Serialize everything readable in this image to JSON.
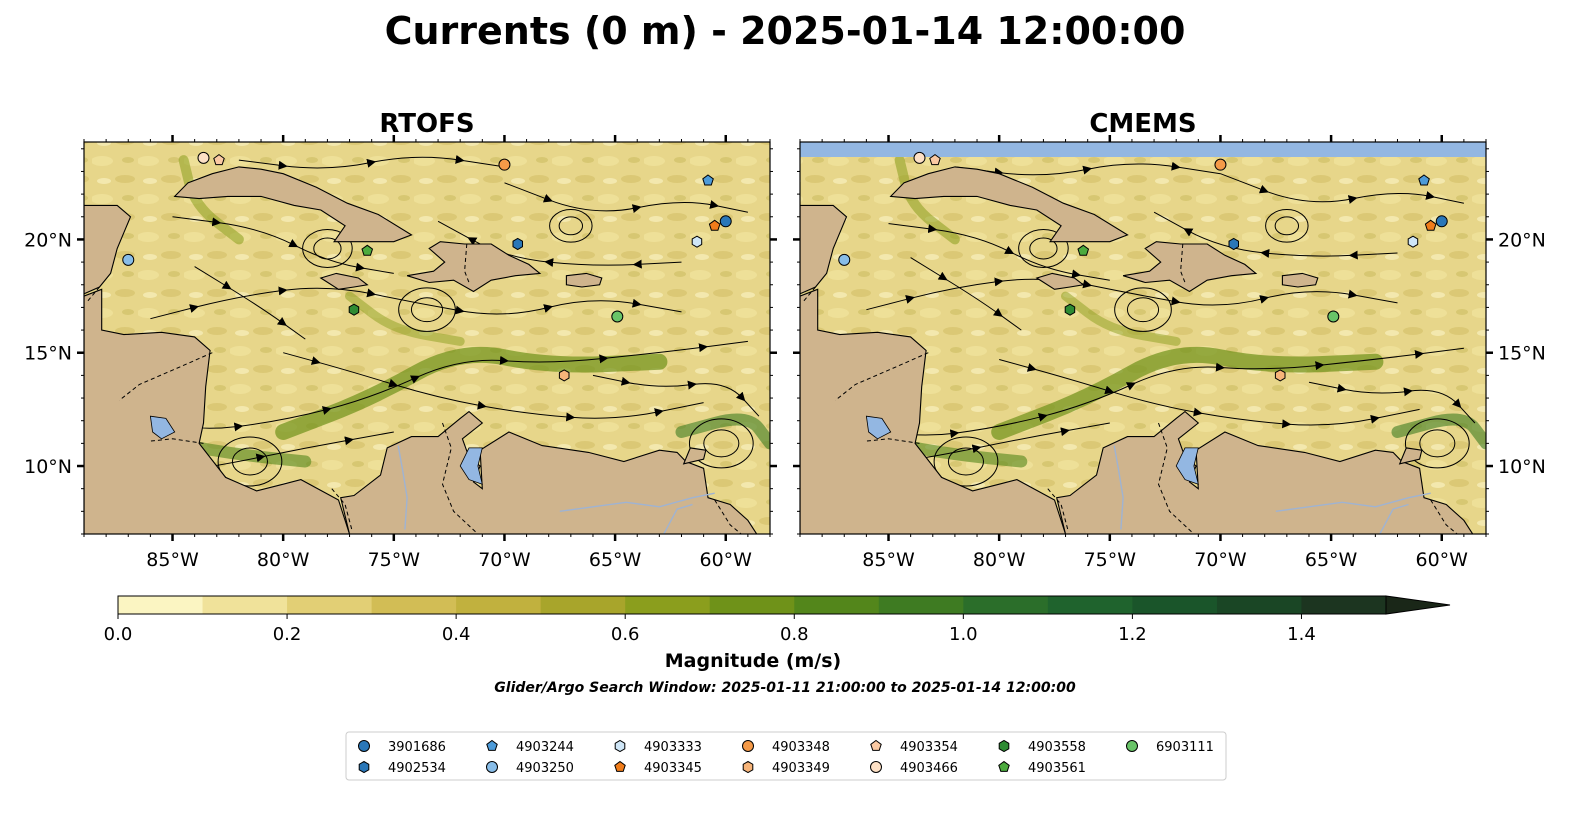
{
  "figure": {
    "title": "Currents (0 m) - 2025-01-14 12:00:00",
    "panels": [
      {
        "name": "RTOFS",
        "has_top_mask": false
      },
      {
        "name": "CMEMS",
        "has_top_mask": true
      }
    ]
  },
  "map": {
    "lon_range": [
      -89,
      -58
    ],
    "lat_range": [
      7,
      24.3
    ],
    "x_ticks": [
      {
        "value": -85,
        "label": "85°W"
      },
      {
        "value": -80,
        "label": "80°W"
      },
      {
        "value": -75,
        "label": "75°W"
      },
      {
        "value": -70,
        "label": "70°W"
      },
      {
        "value": -65,
        "label": "65°W"
      },
      {
        "value": -60,
        "label": "60°W"
      }
    ],
    "y_ticks": [
      {
        "value": 20,
        "label": "20°N"
      },
      {
        "value": 15,
        "label": "15°N"
      },
      {
        "value": 10,
        "label": "10°N"
      }
    ],
    "colors": {
      "ocean": "#e7d68a",
      "land": "#cfb48d",
      "water_mask": "#93b7e2",
      "lake": "#93b7e2",
      "river": "#9fb3d2"
    }
  },
  "colorbar": {
    "label": "Magnitude (m/s)",
    "min": 0.0,
    "max": 1.5,
    "extend": "max",
    "ticks": [
      {
        "value": 0.0,
        "label": "0.0"
      },
      {
        "value": 0.2,
        "label": "0.2"
      },
      {
        "value": 0.4,
        "label": "0.4"
      },
      {
        "value": 0.6,
        "label": "0.6"
      },
      {
        "value": 0.8,
        "label": "0.8"
      },
      {
        "value": 1.0,
        "label": "1.0"
      },
      {
        "value": 1.2,
        "label": "1.2"
      },
      {
        "value": 1.4,
        "label": "1.4"
      }
    ],
    "colors": [
      "#fbf5c2",
      "#f0e29a",
      "#e2cf75",
      "#d2bd55",
      "#c1b13e",
      "#a8a52b",
      "#8b9e1d",
      "#6f9219",
      "#53861b",
      "#3e7b22",
      "#2b6e2a",
      "#1f632d",
      "#1a552a",
      "#1a4625",
      "#1c3520",
      "#1a2718"
    ]
  },
  "search_window": "Glider/Argo Search Window: 2025-01-11 21:00:00 to 2025-01-14 12:00:00",
  "floats": [
    {
      "id": "3901686",
      "marker": "circle",
      "color": "#2a77b8",
      "lon": -60.0,
      "lat": 20.8
    },
    {
      "id": "4902534",
      "marker": "hexagon",
      "color": "#2a77b8",
      "lon": -69.4,
      "lat": 19.8
    },
    {
      "id": "4903244",
      "marker": "pentagon",
      "color": "#4d9bd9",
      "lon": -60.8,
      "lat": 22.6
    },
    {
      "id": "4903250",
      "marker": "circle",
      "color": "#88bde8",
      "lon": -87.0,
      "lat": 19.1
    },
    {
      "id": "4903333",
      "marker": "hexagon",
      "color": "#cfe6f7",
      "lon": -61.3,
      "lat": 19.9
    },
    {
      "id": "4903345",
      "marker": "pentagon",
      "color": "#f07c1a",
      "lon": -60.5,
      "lat": 20.6
    },
    {
      "id": "4903348",
      "marker": "circle",
      "color": "#f59a48",
      "lon": -70.0,
      "lat": 23.3
    },
    {
      "id": "4903349",
      "marker": "hexagon",
      "color": "#f7b479",
      "lon": -67.3,
      "lat": 14.0
    },
    {
      "id": "4903354",
      "marker": "pentagon",
      "color": "#fac9a3",
      "lon": -82.9,
      "lat": 23.5
    },
    {
      "id": "4903466",
      "marker": "circle",
      "color": "#fde0c5",
      "lon": -83.6,
      "lat": 23.6
    },
    {
      "id": "4903558",
      "marker": "hexagon",
      "color": "#2e8b33",
      "lon": -76.8,
      "lat": 16.9
    },
    {
      "id": "4903561",
      "marker": "pentagon",
      "color": "#4cab3e",
      "lon": -76.2,
      "lat": 19.5
    },
    {
      "id": "6903111",
      "marker": "circle",
      "color": "#69c468",
      "lon": -64.9,
      "lat": 16.6
    }
  ]
}
